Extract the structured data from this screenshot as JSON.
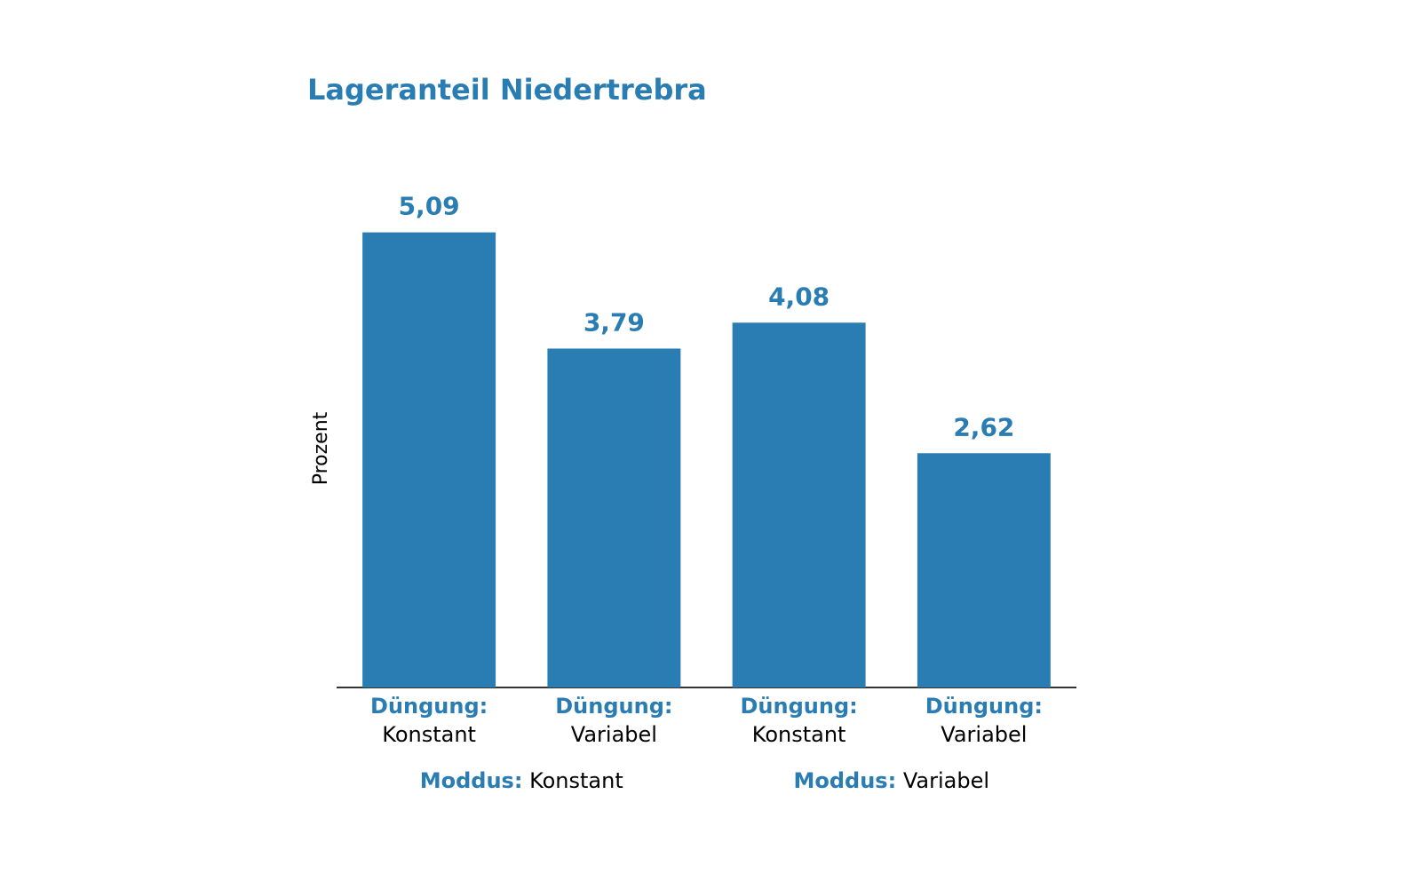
{
  "chart_data": {
    "type": "bar",
    "title": "Lageranteil Niedertrebra",
    "y_label": "Prozent",
    "category_label": "Düngung:",
    "categories": [
      "Konstant",
      "Variabel",
      "Konstant",
      "Variabel"
    ],
    "group_label": "Moddus:",
    "groups": [
      "Konstant",
      "Variabel"
    ],
    "values": [
      5.09,
      3.79,
      4.08,
      2.62
    ],
    "value_labels": [
      "5,09",
      "3,79",
      "4,08",
      "2,62"
    ],
    "color": "#2a7db3",
    "ylim": [
      0,
      6
    ]
  }
}
